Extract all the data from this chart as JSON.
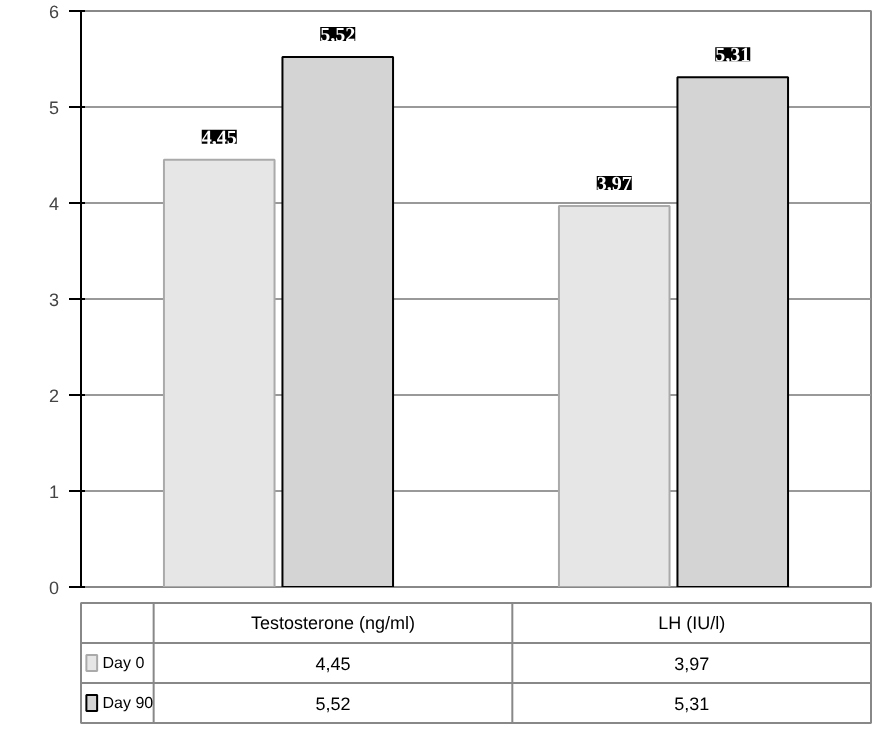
{
  "chart_data": {
    "type": "bar",
    "categories": [
      "Testosterone (ng/ml)",
      "LH (IU/l)"
    ],
    "series": [
      {
        "name": "Day 0",
        "color": "#e6e6e6",
        "values": [
          4.45,
          3.97
        ],
        "value_labels": [
          "4,45",
          "3,97"
        ]
      },
      {
        "name": "Day 90",
        "color": "#d4d4d4",
        "values": [
          5.52,
          5.31
        ],
        "value_labels": [
          "5,52",
          "5,31"
        ]
      }
    ],
    "ylim": [
      0,
      6
    ],
    "yticks": [
      0,
      1,
      2,
      3,
      4,
      5,
      6
    ],
    "grid": "y",
    "legend": "bottom"
  }
}
